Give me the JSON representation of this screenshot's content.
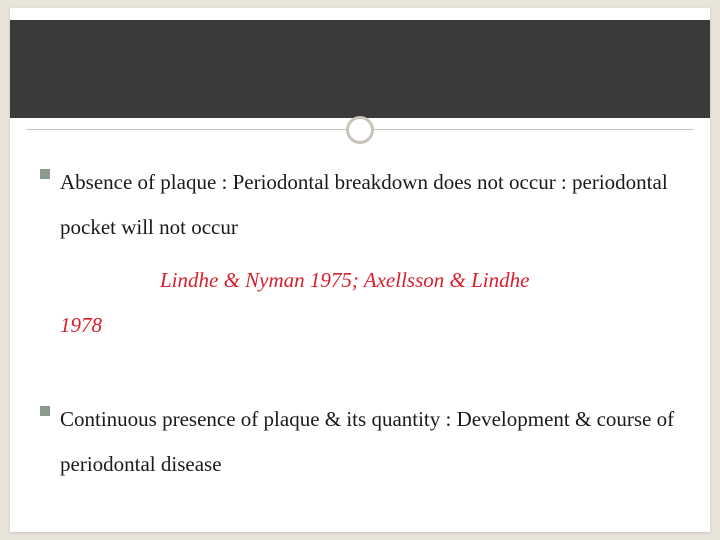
{
  "slide": {
    "background_color": "#ffffff",
    "page_background": "#e8e4d9",
    "header_band_color": "#3a3a3a",
    "divider_color": "#c8c4b8",
    "circle_border_color": "#c8c4b8",
    "bullet_color": "#8a9a8f",
    "text_color": "#1a1a1a",
    "citation_color": "#d81e2c",
    "body_fontsize": 21,
    "bullets": [
      {
        "text": "Absence of plaque : Periodontal breakdown does not occur : periodontal pocket will not occur",
        "citation_line1": "Lindhe & Nyman 1975; Axellsson & Lindhe",
        "citation_line2": "1978"
      },
      {
        "text": "Continuous presence of plaque & its quantity : Development & course of periodontal disease"
      }
    ]
  }
}
